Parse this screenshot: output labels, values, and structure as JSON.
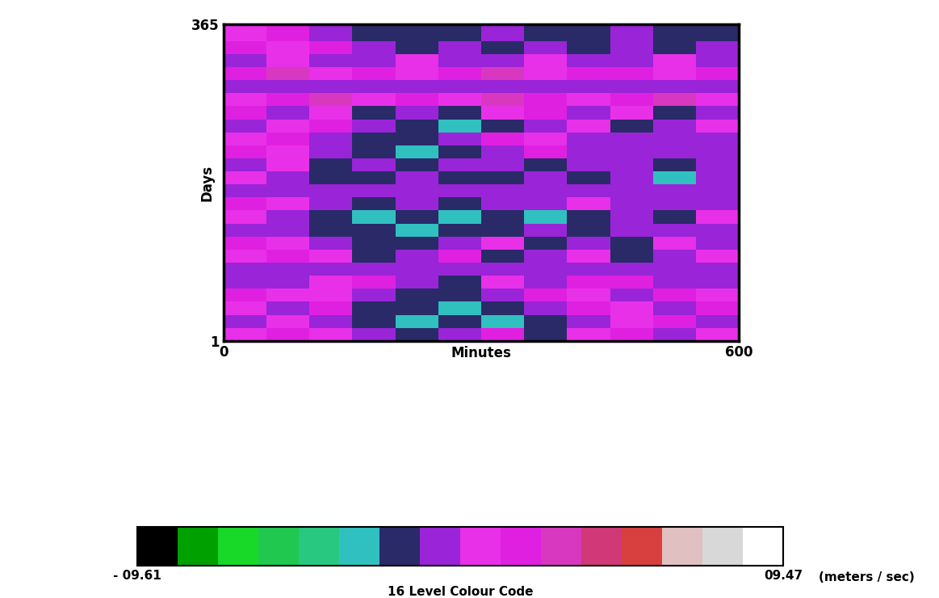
{
  "chart_data": {
    "type": "heatmap",
    "xlabel": "Minutes",
    "ylabel": "Days",
    "xlim": [
      0,
      600
    ],
    "ylim": [
      1,
      365
    ],
    "xticks": [
      0,
      600
    ],
    "yticks": [
      1,
      365
    ],
    "x_edges": [
      0,
      50,
      100,
      150,
      200,
      250,
      300,
      350,
      400,
      450,
      500,
      550,
      600
    ],
    "y_edges": [
      1,
      16,
      31,
      46,
      61,
      76,
      91,
      106,
      121,
      136,
      151,
      166,
      181,
      196,
      211,
      226,
      241,
      256,
      271,
      286,
      301,
      316,
      331,
      346,
      365
    ],
    "cells": [
      [
        0.5,
        1.7,
        0.5,
        -0.6,
        -1.9,
        -0.6,
        1.7,
        -1.9,
        0.5,
        1.7,
        -0.6,
        0.5
      ],
      [
        -0.6,
        0.5,
        -0.6,
        -1.9,
        -3.2,
        -1.9,
        -3.2,
        -1.9,
        -0.6,
        0.5,
        1.7,
        -0.6
      ],
      [
        0.5,
        -0.6,
        1.7,
        -1.9,
        -1.9,
        -3.2,
        -1.9,
        -0.6,
        1.7,
        0.5,
        -0.6,
        1.7
      ],
      [
        1.7,
        0.5,
        0.5,
        -0.6,
        -1.9,
        -1.9,
        -0.6,
        1.7,
        0.5,
        -0.6,
        1.7,
        0.5
      ],
      [
        -0.6,
        -0.6,
        0.5,
        1.7,
        -0.6,
        -1.9,
        0.5,
        -0.6,
        1.7,
        1.7,
        -0.6,
        -0.6
      ],
      [
        -0.6,
        -0.6,
        -0.6,
        -0.6,
        -0.6,
        -0.6,
        -0.6,
        -0.6,
        -0.6,
        -0.6,
        -0.6,
        -0.6
      ],
      [
        0.5,
        1.7,
        0.5,
        -1.9,
        -0.6,
        1.7,
        -1.9,
        -0.6,
        0.5,
        -1.9,
        -0.6,
        0.5
      ],
      [
        1.7,
        0.5,
        -0.6,
        -1.9,
        -1.9,
        -0.6,
        0.5,
        -1.9,
        -0.6,
        -1.9,
        0.5,
        -0.6
      ],
      [
        -0.6,
        -0.6,
        -1.9,
        -1.9,
        -3.2,
        -1.9,
        -1.9,
        -0.6,
        -1.9,
        -0.6,
        -0.6,
        -0.6
      ],
      [
        0.5,
        -0.6,
        -1.9,
        -3.2,
        -1.9,
        -3.2,
        -1.9,
        -3.2,
        -1.9,
        -0.6,
        -1.9,
        0.5
      ],
      [
        1.7,
        0.5,
        -0.6,
        -1.9,
        -0.6,
        -1.9,
        -0.6,
        -0.6,
        0.5,
        -0.6,
        -0.6,
        -0.6
      ],
      [
        -0.6,
        -0.6,
        -0.6,
        -0.6,
        -0.6,
        -0.6,
        -0.6,
        -0.6,
        -0.6,
        -0.6,
        -0.6,
        -0.6
      ],
      [
        0.5,
        -0.6,
        -1.9,
        -1.9,
        -0.6,
        -1.9,
        -1.9,
        -0.6,
        -1.9,
        -0.6,
        -3.2,
        -0.6
      ],
      [
        -0.6,
        0.5,
        -1.9,
        -0.6,
        -1.9,
        -0.6,
        -0.6,
        -1.9,
        -0.6,
        -0.6,
        -1.9,
        -0.6
      ],
      [
        1.7,
        0.5,
        -0.6,
        -1.9,
        -3.2,
        -1.9,
        -0.6,
        1.7,
        -0.6,
        -0.6,
        -0.6,
        -0.6
      ],
      [
        0.5,
        1.7,
        -0.6,
        -1.9,
        -1.9,
        -0.6,
        1.7,
        0.5,
        -0.6,
        -0.6,
        -0.6,
        -0.6
      ],
      [
        -0.6,
        0.5,
        1.7,
        -0.6,
        -1.9,
        -3.2,
        -1.9,
        -0.6,
        0.5,
        -1.9,
        -0.6,
        0.5
      ],
      [
        1.7,
        -0.6,
        0.5,
        -1.9,
        -0.6,
        -1.9,
        0.5,
        1.7,
        -0.6,
        0.5,
        -1.9,
        -0.6
      ],
      [
        0.5,
        1.7,
        2.5,
        0.5,
        1.7,
        0.5,
        2.5,
        1.7,
        0.5,
        1.7,
        2.5,
        0.5
      ],
      [
        -0.6,
        -0.6,
        -0.6,
        -0.6,
        -0.6,
        -0.6,
        -0.6,
        -0.6,
        -0.6,
        -0.6,
        -0.6,
        -0.6
      ],
      [
        1.7,
        2.5,
        0.5,
        1.7,
        0.5,
        1.7,
        2.5,
        0.5,
        1.7,
        1.7,
        0.5,
        1.7
      ],
      [
        -0.6,
        0.5,
        -0.6,
        -0.6,
        0.5,
        -0.6,
        -0.6,
        0.5,
        -0.6,
        -0.6,
        0.5,
        -0.6
      ],
      [
        1.7,
        0.5,
        1.7,
        -0.6,
        -1.9,
        -0.6,
        -1.9,
        -0.6,
        -1.9,
        -0.6,
        -1.9,
        -0.6
      ],
      [
        0.5,
        1.7,
        -0.6,
        -1.9,
        -1.9,
        -1.9,
        -0.6,
        -1.9,
        -1.9,
        -0.6,
        -1.9,
        -1.9
      ]
    ],
    "colorbar": {
      "range": [
        -9.61,
        9.47
      ],
      "ticks": [
        {
          "value": -9.61,
          "label": "- 09.61"
        },
        {
          "value": 9.47,
          "label": "09.47"
        }
      ],
      "label": "16 Level Colour Code",
      "unit": "(meters / sec)",
      "levels": 16
    },
    "colors": [
      "#000000",
      "#00a000",
      "#18d828",
      "#20c850",
      "#28c880",
      "#30c0c0",
      "#2a2a68",
      "#9a24d8",
      "#e830e8",
      "#e020e0",
      "#d838c0",
      "#d03878",
      "#d84040",
      "#e0c0c0",
      "#d8d8d8",
      "#ffffff"
    ]
  }
}
